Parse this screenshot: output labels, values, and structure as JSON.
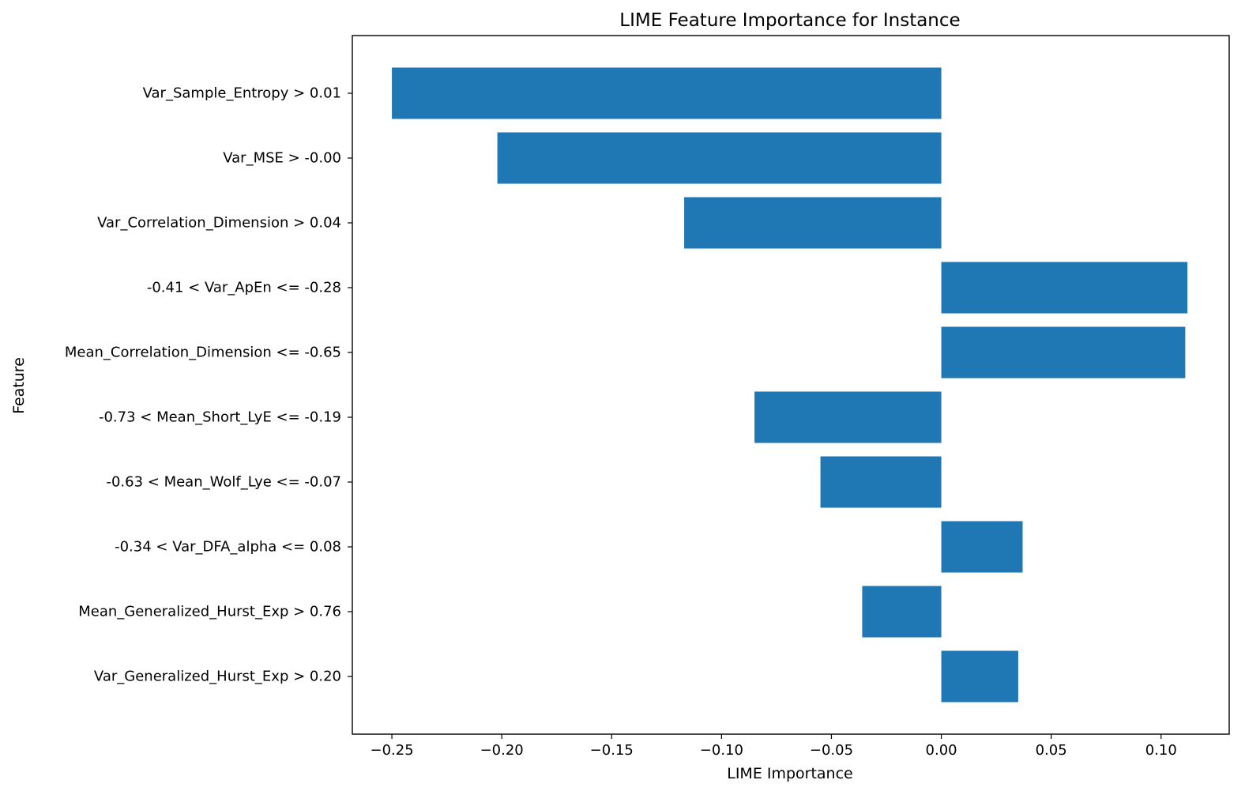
{
  "chart_data": {
    "type": "bar",
    "orientation": "horizontal",
    "title": "LIME Feature Importance for Instance",
    "xlabel": "LIME Importance",
    "ylabel": "Feature",
    "xlim": [
      -0.268,
      0.131
    ],
    "xticks": [
      -0.25,
      -0.2,
      -0.15,
      -0.1,
      -0.05,
      0.0,
      0.05,
      0.1
    ],
    "xtick_labels": [
      "−0.25",
      "−0.20",
      "−0.15",
      "−0.10",
      "−0.05",
      "0.00",
      "0.05",
      "0.10"
    ],
    "grid": false,
    "legend": "none",
    "bar_color": "#1f77b4",
    "categories": [
      "Var_Sample_Entropy > 0.01",
      "Var_MSE > -0.00",
      "Var_Correlation_Dimension > 0.04",
      "-0.41 < Var_ApEn <= -0.28",
      "Mean_Correlation_Dimension <= -0.65",
      "-0.73 < Mean_Short_LyE <= -0.19",
      "-0.63 < Mean_Wolf_Lye <= -0.07",
      "-0.34 < Var_DFA_alpha <= 0.08",
      "Mean_Generalized_Hurst_Exp > 0.76",
      "Var_Generalized_Hurst_Exp > 0.20"
    ],
    "values": [
      -0.25,
      -0.202,
      -0.117,
      0.112,
      0.111,
      -0.085,
      -0.055,
      0.037,
      -0.036,
      0.035
    ]
  }
}
